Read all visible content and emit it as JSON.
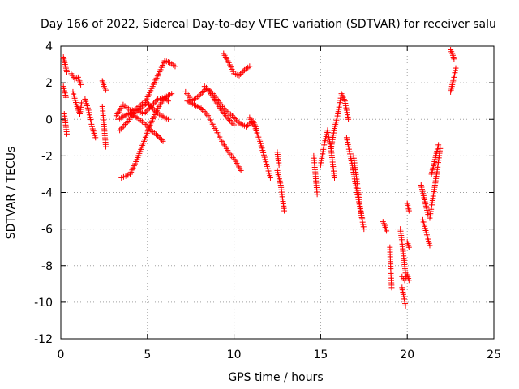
{
  "chart_data": {
    "type": "scatter",
    "title": "Day 166 of 2022, Sidereal Day-to-day VTEC variation (SDTVAR) for receiver salu",
    "xlabel": "GPS time / hours",
    "ylabel": "SDTVAR / TECUs",
    "xlim": [
      0,
      25
    ],
    "ylim": [
      -12,
      4
    ],
    "xticks": [
      "0",
      "5",
      "10",
      "15",
      "20",
      "25"
    ],
    "yticks": [
      "4",
      "2",
      "0",
      "-2",
      "-4",
      "-6",
      "-8",
      "-10",
      "-12"
    ],
    "grid": true,
    "marker": "+",
    "color": "#ff0000",
    "series": [
      {
        "name": "s1",
        "x": [
          0.15,
          0.25,
          0.35
        ],
        "y": [
          3.4,
          3.0,
          2.6
        ]
      },
      {
        "name": "s2",
        "x": [
          0.15,
          0.3
        ],
        "y": [
          1.8,
          1.2
        ]
      },
      {
        "name": "s3",
        "x": [
          0.2,
          0.35
        ],
        "y": [
          0.3,
          -0.8
        ]
      },
      {
        "name": "s4",
        "x": [
          0.6,
          0.8,
          1.0,
          1.15
        ],
        "y": [
          2.5,
          2.2,
          2.3,
          1.9
        ]
      },
      {
        "name": "s5",
        "x": [
          0.7,
          0.9,
          1.1,
          1.2
        ],
        "y": [
          1.5,
          0.8,
          0.3,
          0.9
        ]
      },
      {
        "name": "s6",
        "x": [
          1.4,
          1.6,
          1.8,
          2.0
        ],
        "y": [
          1.1,
          0.5,
          -0.4,
          -1.0
        ]
      },
      {
        "name": "s7",
        "x": [
          2.4,
          2.5,
          2.6
        ],
        "y": [
          2.1,
          1.8,
          1.6
        ]
      },
      {
        "name": "s8",
        "x": [
          2.4,
          2.5,
          2.6
        ],
        "y": [
          0.7,
          -0.4,
          -1.5
        ]
      },
      {
        "name": "s9",
        "x": [
          3.2,
          3.6,
          4.0,
          4.4,
          4.8,
          5.2,
          5.6,
          6.0,
          6.2
        ],
        "y": [
          0.2,
          0.8,
          0.5,
          0.5,
          0.3,
          0.7,
          1.1,
          1.2,
          1.0
        ]
      },
      {
        "name": "s10",
        "x": [
          3.4,
          3.8,
          4.2,
          4.6,
          5.0,
          5.4,
          5.8,
          6.2
        ],
        "y": [
          -0.6,
          -0.2,
          0.3,
          0.6,
          0.9,
          0.5,
          0.2,
          0.0
        ]
      },
      {
        "name": "s11",
        "x": [
          3.5,
          4.0,
          4.4,
          4.8,
          5.2,
          5.6,
          6.0,
          6.4
        ],
        "y": [
          -3.2,
          -3.0,
          -2.2,
          -1.2,
          -0.2,
          0.6,
          1.2,
          1.4
        ]
      },
      {
        "name": "s12",
        "x": [
          3.3,
          3.7,
          4.1,
          4.5,
          4.9,
          5.3,
          5.7,
          6.0
        ],
        "y": [
          0.0,
          0.2,
          0.4,
          0.7,
          1.0,
          1.8,
          2.6,
          3.2
        ]
      },
      {
        "name": "s13",
        "x": [
          4.0,
          4.4,
          4.8,
          5.2,
          5.6,
          5.9
        ],
        "y": [
          0.3,
          0.1,
          -0.2,
          -0.6,
          -0.9,
          -1.2
        ]
      },
      {
        "name": "s14",
        "x": [
          6.0,
          6.3,
          6.6
        ],
        "y": [
          3.2,
          3.1,
          2.9
        ]
      },
      {
        "name": "s15",
        "x": [
          7.2,
          7.6,
          8.0,
          8.4,
          8.8,
          9.2,
          9.6,
          10.0
        ],
        "y": [
          1.5,
          1.0,
          1.3,
          1.7,
          1.2,
          0.6,
          0.1,
          -0.3
        ]
      },
      {
        "name": "s16",
        "x": [
          7.3,
          7.7,
          8.1,
          8.5,
          8.9,
          9.3,
          9.7,
          10.1,
          10.4
        ],
        "y": [
          1.0,
          0.8,
          0.6,
          0.2,
          -0.5,
          -1.2,
          -1.8,
          -2.3,
          -2.8
        ]
      },
      {
        "name": "s17",
        "x": [
          8.3,
          8.7,
          9.1,
          9.5,
          9.9,
          10.3,
          10.7,
          11.1,
          11.3
        ],
        "y": [
          1.8,
          1.5,
          1.0,
          0.5,
          0.2,
          -0.2,
          -0.4,
          -0.1,
          -0.5
        ]
      },
      {
        "name": "s18",
        "x": [
          9.4,
          9.7,
          10.0,
          10.3,
          10.6,
          10.9
        ],
        "y": [
          3.6,
          3.1,
          2.5,
          2.4,
          2.7,
          2.9
        ]
      },
      {
        "name": "s19",
        "x": [
          10.9,
          11.2,
          11.5,
          11.8,
          12.1
        ],
        "y": [
          0.1,
          -0.4,
          -1.2,
          -2.2,
          -3.2
        ]
      },
      {
        "name": "s20",
        "x": [
          12.5,
          12.7,
          12.9
        ],
        "y": [
          -2.8,
          -3.6,
          -5.0
        ]
      },
      {
        "name": "s21",
        "x": [
          12.5,
          12.6
        ],
        "y": [
          -1.8,
          -2.5
        ]
      },
      {
        "name": "s22",
        "x": [
          14.6,
          14.7,
          14.8
        ],
        "y": [
          -2.0,
          -3.0,
          -4.1
        ]
      },
      {
        "name": "s23",
        "x": [
          15.0,
          15.2,
          15.4,
          15.6,
          15.8
        ],
        "y": [
          -2.5,
          -1.4,
          -0.6,
          -1.6,
          -3.2
        ]
      },
      {
        "name": "s24",
        "x": [
          15.6,
          15.8,
          16.0,
          16.2,
          16.4,
          16.6
        ],
        "y": [
          -1.6,
          -0.5,
          0.3,
          1.4,
          1.0,
          0.0
        ]
      },
      {
        "name": "s25",
        "x": [
          16.5,
          16.8,
          17.1,
          17.4
        ],
        "y": [
          -1.0,
          -2.4,
          -4.0,
          -5.4
        ]
      },
      {
        "name": "s26",
        "x": [
          16.9,
          17.1,
          17.3,
          17.5
        ],
        "y": [
          -2.0,
          -3.4,
          -5.0,
          -6.0
        ]
      },
      {
        "name": "s27",
        "x": [
          18.6,
          18.7,
          18.8
        ],
        "y": [
          -5.6,
          -5.8,
          -6.1
        ]
      },
      {
        "name": "s28",
        "x": [
          19.0,
          19.05,
          19.1
        ],
        "y": [
          -7.0,
          -8.3,
          -9.2
        ]
      },
      {
        "name": "s29",
        "x": [
          19.6,
          19.7,
          19.8,
          19.9
        ],
        "y": [
          -6.0,
          -6.7,
          -7.6,
          -8.4
        ]
      },
      {
        "name": "s30",
        "x": [
          19.7,
          19.85,
          20.0,
          20.1
        ],
        "y": [
          -8.6,
          -8.8,
          -8.5,
          -8.8
        ]
      },
      {
        "name": "s31",
        "x": [
          19.7,
          19.8,
          19.9
        ],
        "y": [
          -9.2,
          -9.7,
          -10.2
        ]
      },
      {
        "name": "s32",
        "x": [
          20.0,
          20.1
        ],
        "y": [
          -6.7,
          -7.0
        ]
      },
      {
        "name": "s33",
        "x": [
          20.0,
          20.1
        ],
        "y": [
          -4.6,
          -5.0
        ]
      },
      {
        "name": "s34",
        "x": [
          20.8,
          21.0,
          21.2
        ],
        "y": [
          -3.6,
          -4.4,
          -5.2
        ]
      },
      {
        "name": "s35",
        "x": [
          20.9,
          21.1,
          21.3
        ],
        "y": [
          -5.5,
          -6.2,
          -6.9
        ]
      },
      {
        "name": "s36",
        "x": [
          21.3,
          21.5,
          21.7,
          21.9
        ],
        "y": [
          -5.4,
          -4.2,
          -3.0,
          -1.6
        ]
      },
      {
        "name": "s37",
        "x": [
          21.4,
          21.6,
          21.8
        ],
        "y": [
          -3.0,
          -2.2,
          -1.4
        ]
      },
      {
        "name": "s38",
        "x": [
          22.5,
          22.6,
          22.7
        ],
        "y": [
          3.8,
          3.6,
          3.3
        ]
      },
      {
        "name": "s39",
        "x": [
          22.5,
          22.6,
          22.7,
          22.8
        ],
        "y": [
          1.5,
          1.9,
          2.3,
          2.8
        ]
      }
    ]
  }
}
